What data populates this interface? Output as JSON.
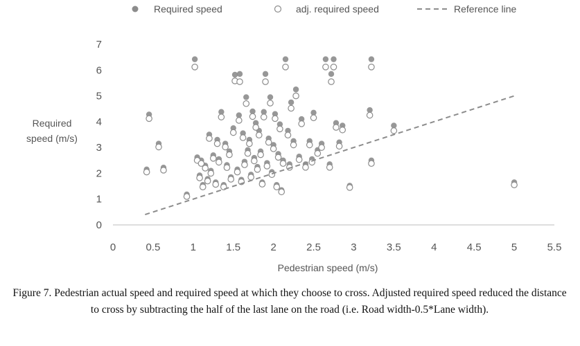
{
  "chart_data": {
    "type": "scatter",
    "xlabel": "Pedestrian speed (m/s)",
    "ylabel_lines": [
      "Required",
      "speed (m/s)"
    ],
    "xlim": [
      0,
      5.5
    ],
    "ylim": [
      0,
      7
    ],
    "xticks": [
      "0",
      "0.5",
      "1",
      "1.5",
      "2",
      "2.5",
      "3",
      "3.5",
      "4",
      "4.5",
      "5",
      "5.5"
    ],
    "yticks": [
      "0",
      "1",
      "2",
      "3",
      "4",
      "5",
      "6",
      "7"
    ],
    "grid": false,
    "legend_position": "top",
    "series": [
      {
        "name": "Required speed",
        "marker": "filled-circle",
        "color": "#8c8c8c",
        "points": [
          [
            0.42,
            2.15
          ],
          [
            0.45,
            4.28
          ],
          [
            0.57,
            3.15
          ],
          [
            0.63,
            2.22
          ],
          [
            0.92,
            1.18
          ],
          [
            1.02,
            6.42
          ],
          [
            1.05,
            2.62
          ],
          [
            1.08,
            1.92
          ],
          [
            1.1,
            2.5
          ],
          [
            1.12,
            1.55
          ],
          [
            1.15,
            2.3
          ],
          [
            1.18,
            1.78
          ],
          [
            1.2,
            3.5
          ],
          [
            1.22,
            2.1
          ],
          [
            1.25,
            2.7
          ],
          [
            1.28,
            1.65
          ],
          [
            1.3,
            3.3
          ],
          [
            1.32,
            2.55
          ],
          [
            1.35,
            4.38
          ],
          [
            1.38,
            1.55
          ],
          [
            1.4,
            3.15
          ],
          [
            1.42,
            2.32
          ],
          [
            1.45,
            2.85
          ],
          [
            1.47,
            1.85
          ],
          [
            1.5,
            3.75
          ],
          [
            1.52,
            5.82
          ],
          [
            1.55,
            2.15
          ],
          [
            1.57,
            4.25
          ],
          [
            1.58,
            5.85
          ],
          [
            1.6,
            1.75
          ],
          [
            1.62,
            3.55
          ],
          [
            1.64,
            2.45
          ],
          [
            1.66,
            4.95
          ],
          [
            1.68,
            2.9
          ],
          [
            1.7,
            3.3
          ],
          [
            1.72,
            1.95
          ],
          [
            1.74,
            4.4
          ],
          [
            1.76,
            2.6
          ],
          [
            1.78,
            3.95
          ],
          [
            1.8,
            2.25
          ],
          [
            1.82,
            3.65
          ],
          [
            1.84,
            2.85
          ],
          [
            1.86,
            1.65
          ],
          [
            1.88,
            4.38
          ],
          [
            1.9,
            5.85
          ],
          [
            1.92,
            2.4
          ],
          [
            1.94,
            3.35
          ],
          [
            1.96,
            4.95
          ],
          [
            1.98,
            2.05
          ],
          [
            2.0,
            3.1
          ],
          [
            2.02,
            4.3
          ],
          [
            2.04,
            1.55
          ],
          [
            2.06,
            2.75
          ],
          [
            2.08,
            3.9
          ],
          [
            2.1,
            1.35
          ],
          [
            2.12,
            2.5
          ],
          [
            2.15,
            6.42
          ],
          [
            2.18,
            3.65
          ],
          [
            2.2,
            2.35
          ],
          [
            2.22,
            4.75
          ],
          [
            2.25,
            3.25
          ],
          [
            2.28,
            5.25
          ],
          [
            2.32,
            2.65
          ],
          [
            2.35,
            4.1
          ],
          [
            2.4,
            2.35
          ],
          [
            2.45,
            3.25
          ],
          [
            2.48,
            2.55
          ],
          [
            2.5,
            4.35
          ],
          [
            2.55,
            2.9
          ],
          [
            2.6,
            3.15
          ],
          [
            2.65,
            6.42
          ],
          [
            2.7,
            2.35
          ],
          [
            2.72,
            5.85
          ],
          [
            2.75,
            6.42
          ],
          [
            2.78,
            3.95
          ],
          [
            2.82,
            3.2
          ],
          [
            2.86,
            3.85
          ],
          [
            2.95,
            1.52
          ],
          [
            3.2,
            4.45
          ],
          [
            3.22,
            2.5
          ],
          [
            3.22,
            6.42
          ],
          [
            3.5,
            3.85
          ],
          [
            5.0,
            1.65
          ]
        ]
      },
      {
        "name": "adj. required speed",
        "marker": "hollow-circle",
        "color": "#8c8c8c",
        "points": [
          [
            0.42,
            2.05
          ],
          [
            0.45,
            4.12
          ],
          [
            0.57,
            3.02
          ],
          [
            0.63,
            2.12
          ],
          [
            0.92,
            1.1
          ],
          [
            1.02,
            6.12
          ],
          [
            1.05,
            2.5
          ],
          [
            1.08,
            1.82
          ],
          [
            1.1,
            2.38
          ],
          [
            1.12,
            1.47
          ],
          [
            1.15,
            2.2
          ],
          [
            1.18,
            1.7
          ],
          [
            1.2,
            3.35
          ],
          [
            1.22,
            2.0
          ],
          [
            1.25,
            2.58
          ],
          [
            1.28,
            1.57
          ],
          [
            1.3,
            3.15
          ],
          [
            1.32,
            2.43
          ],
          [
            1.35,
            4.18
          ],
          [
            1.38,
            1.47
          ],
          [
            1.4,
            3.02
          ],
          [
            1.42,
            2.22
          ],
          [
            1.45,
            2.72
          ],
          [
            1.47,
            1.77
          ],
          [
            1.5,
            3.58
          ],
          [
            1.52,
            5.58
          ],
          [
            1.55,
            2.05
          ],
          [
            1.57,
            4.05
          ],
          [
            1.58,
            5.55
          ],
          [
            1.6,
            1.67
          ],
          [
            1.62,
            3.38
          ],
          [
            1.64,
            2.33
          ],
          [
            1.66,
            4.7
          ],
          [
            1.68,
            2.77
          ],
          [
            1.7,
            3.15
          ],
          [
            1.72,
            1.85
          ],
          [
            1.74,
            4.2
          ],
          [
            1.76,
            2.48
          ],
          [
            1.78,
            3.78
          ],
          [
            1.8,
            2.15
          ],
          [
            1.82,
            3.48
          ],
          [
            1.84,
            2.72
          ],
          [
            1.86,
            1.58
          ],
          [
            1.88,
            4.18
          ],
          [
            1.9,
            5.55
          ],
          [
            1.92,
            2.28
          ],
          [
            1.94,
            3.2
          ],
          [
            1.96,
            4.72
          ],
          [
            1.98,
            1.95
          ],
          [
            2.0,
            2.95
          ],
          [
            2.02,
            4.12
          ],
          [
            2.04,
            1.47
          ],
          [
            2.06,
            2.62
          ],
          [
            2.08,
            3.72
          ],
          [
            2.1,
            1.28
          ],
          [
            2.12,
            2.38
          ],
          [
            2.15,
            6.12
          ],
          [
            2.18,
            3.48
          ],
          [
            2.2,
            2.23
          ],
          [
            2.22,
            4.52
          ],
          [
            2.25,
            3.1
          ],
          [
            2.28,
            5.0
          ],
          [
            2.32,
            2.53
          ],
          [
            2.35,
            3.92
          ],
          [
            2.4,
            2.23
          ],
          [
            2.45,
            3.1
          ],
          [
            2.48,
            2.43
          ],
          [
            2.5,
            4.15
          ],
          [
            2.55,
            2.77
          ],
          [
            2.6,
            3.0
          ],
          [
            2.65,
            6.12
          ],
          [
            2.7,
            2.23
          ],
          [
            2.72,
            5.55
          ],
          [
            2.75,
            6.12
          ],
          [
            2.78,
            3.78
          ],
          [
            2.82,
            3.05
          ],
          [
            2.86,
            3.68
          ],
          [
            2.95,
            1.45
          ],
          [
            3.2,
            4.25
          ],
          [
            3.22,
            2.38
          ],
          [
            3.22,
            6.12
          ],
          [
            3.5,
            3.65
          ],
          [
            5.0,
            1.55
          ]
        ]
      },
      {
        "name": "Reference line",
        "marker": "dashed-line",
        "color": "#8c8c8c",
        "points": [
          [
            0.4,
            0.4
          ],
          [
            5.0,
            5.0
          ]
        ]
      }
    ]
  },
  "caption": "Figure 7. Pedestrian actual speed and required speed at which they choose to cross. Adjusted required speed reduced the distance to cross by subtracting the half of the last lane on the road (i.e. Road width-0.5*Lane width)."
}
